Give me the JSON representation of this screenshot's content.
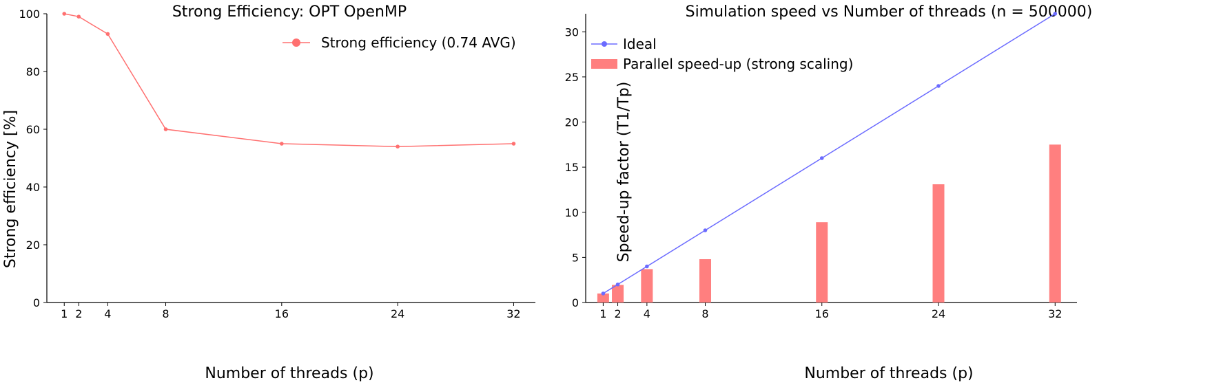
{
  "chart_data": [
    {
      "type": "line",
      "title": "Strong Efficiency: OPT OpenMP",
      "xlabel": "Number of threads (p)",
      "ylabel": "Strong efficiency [%]",
      "x": [
        1,
        2,
        4,
        8,
        16,
        24,
        32
      ],
      "xticks": [
        "1",
        "2",
        "4",
        "8",
        "16",
        "24",
        "32"
      ],
      "xlim": [
        -0.2,
        33.5
      ],
      "ylim": [
        0,
        100
      ],
      "yticks": [
        "0",
        "20",
        "40",
        "60",
        "80",
        "100"
      ],
      "grid": false,
      "legend_position": "top-right",
      "series": [
        {
          "name": "Strong efficiency (0.74 AVG)",
          "color": "#ff7070",
          "values": [
            100,
            99,
            93,
            60,
            55,
            54,
            55
          ]
        }
      ]
    },
    {
      "type": "bar",
      "title": "Simulation speed vs Number of threads (n = 500000)",
      "xlabel": "Number of threads (p)",
      "ylabel": "Speed-up factor (T1/Tp)",
      "x": [
        1,
        2,
        4,
        8,
        16,
        24,
        32
      ],
      "xticks": [
        "1",
        "2",
        "4",
        "8",
        "16",
        "24",
        "32"
      ],
      "xlim": [
        -0.2,
        33.5
      ],
      "ylim": [
        0,
        32
      ],
      "yticks": [
        "0",
        "5",
        "10",
        "15",
        "20",
        "25",
        "30"
      ],
      "grid": false,
      "legend_position": "top-left",
      "series": [
        {
          "name": "Ideal",
          "kind": "line",
          "color": "#6b6bff",
          "values": [
            1,
            2,
            4,
            8,
            16,
            24,
            32
          ]
        },
        {
          "name": "Parallel speed-up (strong scaling)",
          "kind": "bar",
          "color": "#ff7f7f",
          "values": [
            1.0,
            1.95,
            3.7,
            4.8,
            8.9,
            13.1,
            17.5
          ]
        }
      ]
    }
  ]
}
